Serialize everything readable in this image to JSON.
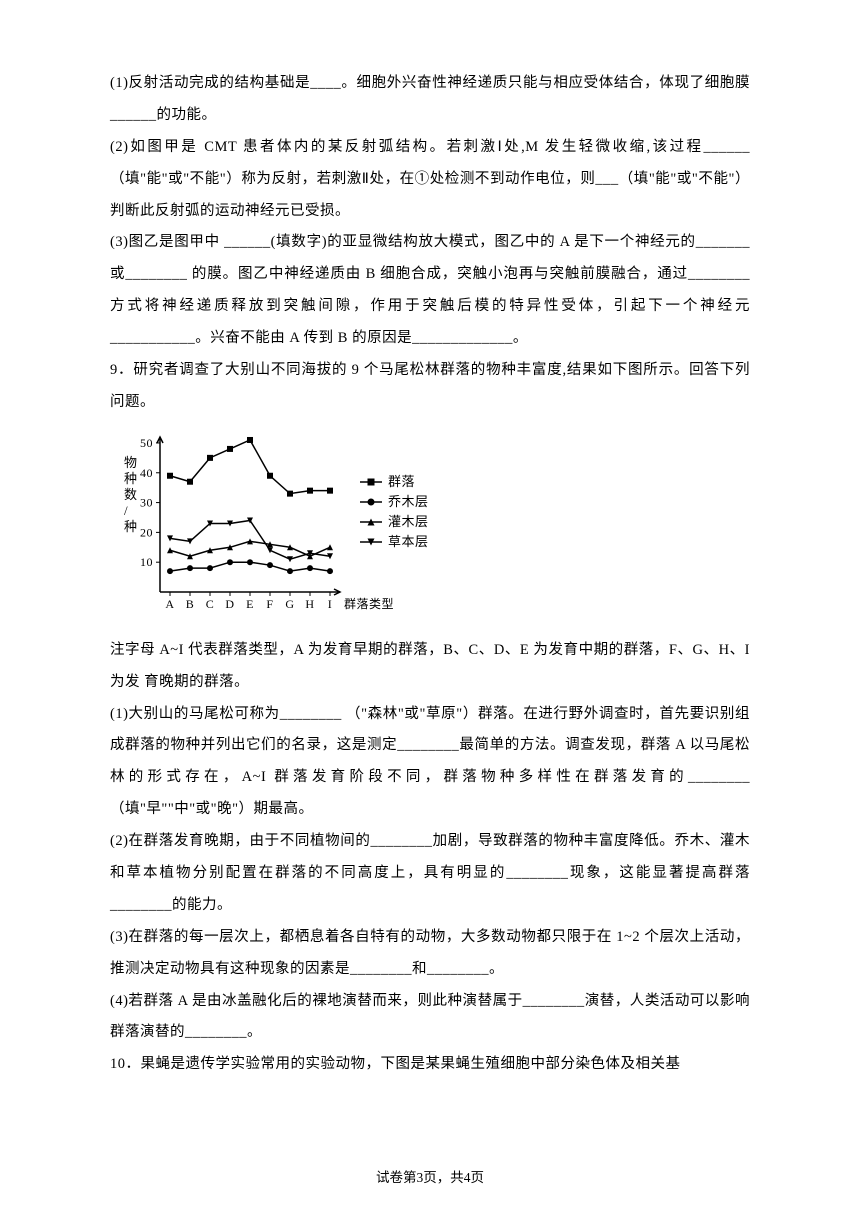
{
  "q8": {
    "p1": "(1)反射活动完成的结构基础是____。细胞外兴奋性神经递质只能与相应受体结合，体现了细胞膜______的功能。",
    "p2": "(2)如图甲是 CMT 患者体内的某反射弧结构。若刺激Ⅰ处,M 发生轻微收缩,该过程______（填\"能\"或\"不能\"）称为反射，若刺激Ⅱ处，在①处检测不到动作电位，则___（填\"能\"或\"不能\"）判断此反射弧的运动神经元已受损。",
    "p3": "(3)图乙是图甲中 ______(填数字)的亚显微结构放大模式，图乙中的 A 是下一个神经元的_______或________ 的膜。图乙中神经递质由 B 细胞合成，突触小泡再与突触前膜融合，通过________方式将神经递质释放到突触间隙，作用于突触后模的特异性受体，引起下一个神经元 ___________。兴奋不能由 A 传到 B 的原因是_____________。"
  },
  "q9": {
    "intro": "9．研究者调查了大别山不同海拔的 9 个马尾松林群落的物种丰富度,结果如下图所示。回答下列问题。",
    "note": "注字母 A~I 代表群落类型，A 为发育早期的群落，B、C、D、E 为发育中期的群落，F、G、H、I 为发 育晚期的群落。",
    "p1": "(1)大别山的马尾松可称为________ （\"森林\"或\"草原\"）群落。在进行野外调查时，首先要识别组成群落的物种并列出它们的名录，这是测定________最简单的方法。调查发现，群落 A 以马尾松林的形式存在，A~I 群落发育阶段不同，群落物种多样性在群落发育的________ （填\"早\"\"中\"或\"晚\"）期最高。",
    "p2": "(2)在群落发育晚期，由于不同植物间的________加剧，导致群落的物种丰富度降低。乔木、灌木和草本植物分别配置在群落的不同高度上，具有明显的________现象，这能显著提高群落________的能力。",
    "p3": "(3)在群落的每一层次上，都栖息着各自特有的动物，大多数动物都只限于在 1~2 个层次上活动，推测决定动物具有这种现象的因素是________和________。",
    "p4": "(4)若群落 A 是由冰盖融化后的裸地演替而来，则此种演替属于________演替，人类活动可以影响群落演替的________。"
  },
  "q10": {
    "intro": "10．果蝇是遗传学实验常用的实验动物，下图是某果蝇生殖细胞中部分染色体及相关基"
  },
  "footer": "试卷第3页，共4页",
  "chart": {
    "type": "line",
    "categories": [
      "A",
      "B",
      "C",
      "D",
      "E",
      "F",
      "G",
      "H",
      "I"
    ],
    "x_axis_label": "群落类型",
    "y_axis_label": "物种数/种",
    "y_axis_label_chars": [
      "物",
      "种",
      "数",
      "/",
      "种"
    ],
    "ylim": [
      0,
      52
    ],
    "yticks": [
      10,
      20,
      30,
      40,
      50
    ],
    "series": [
      {
        "name": "群落",
        "marker": "square",
        "color": "#000000",
        "values": [
          39,
          37,
          45,
          48,
          51,
          39,
          33,
          34,
          34
        ]
      },
      {
        "name": "乔木层",
        "marker": "circle",
        "color": "#000000",
        "values": [
          7,
          8,
          8,
          10,
          10,
          9,
          7,
          8,
          7
        ]
      },
      {
        "name": "灌木层",
        "marker": "triangle",
        "color": "#000000",
        "values": [
          14,
          12,
          14,
          15,
          17,
          16,
          15,
          12,
          15
        ]
      },
      {
        "name": "草本层",
        "marker": "invtriangle",
        "color": "#000000",
        "values": [
          18,
          17,
          23,
          23,
          24,
          14,
          11,
          13,
          12
        ]
      }
    ],
    "background_color": "#ffffff",
    "axis_color": "#000000",
    "line_width": 1.5
  }
}
